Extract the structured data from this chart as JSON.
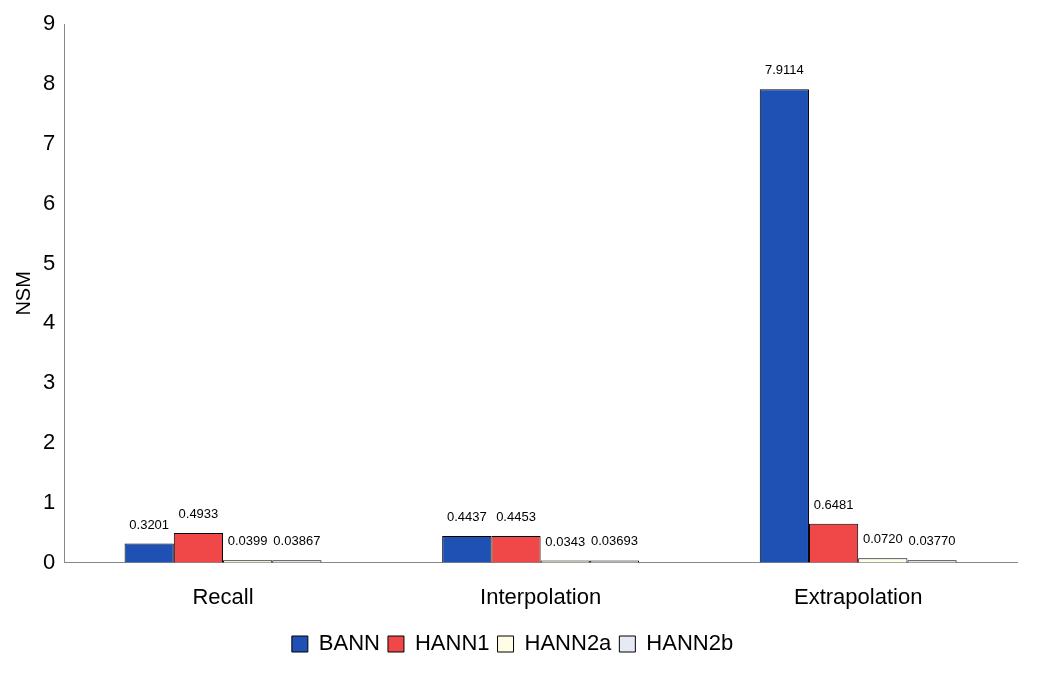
{
  "chart_data": {
    "type": "bar",
    "ylabel": "NSM",
    "categories": [
      "Recall",
      "Interpolation",
      "Extrapolation"
    ],
    "series": [
      {
        "name": "BANN",
        "color": "#1f50b4",
        "values": [
          0.3201,
          0.4437,
          7.9114
        ],
        "value_labels": [
          "0.3201",
          "0.4437",
          "7.9114"
        ]
      },
      {
        "name": "HANN1",
        "color": "#f04848",
        "values": [
          0.4933,
          0.4453,
          0.6481
        ],
        "value_labels": [
          "0.4933",
          "0.4453",
          "0.6481"
        ]
      },
      {
        "name": "HANN2a",
        "color": "#fffde6",
        "values": [
          0.0399,
          0.0343,
          0.072
        ],
        "value_labels": [
          "0.0399",
          "0.0343",
          "0.0720"
        ]
      },
      {
        "name": "HANN2b",
        "color": "#e6eaf4",
        "values": [
          0.03867,
          0.03693,
          0.0377
        ],
        "value_labels": [
          "0.03867",
          "0.03693",
          "0.03770"
        ]
      }
    ],
    "ylim": [
      0,
      9
    ],
    "yticks": [
      0,
      1,
      2,
      3,
      4,
      5,
      6,
      7,
      8,
      9
    ],
    "grid": false,
    "legend": "bottom"
  }
}
